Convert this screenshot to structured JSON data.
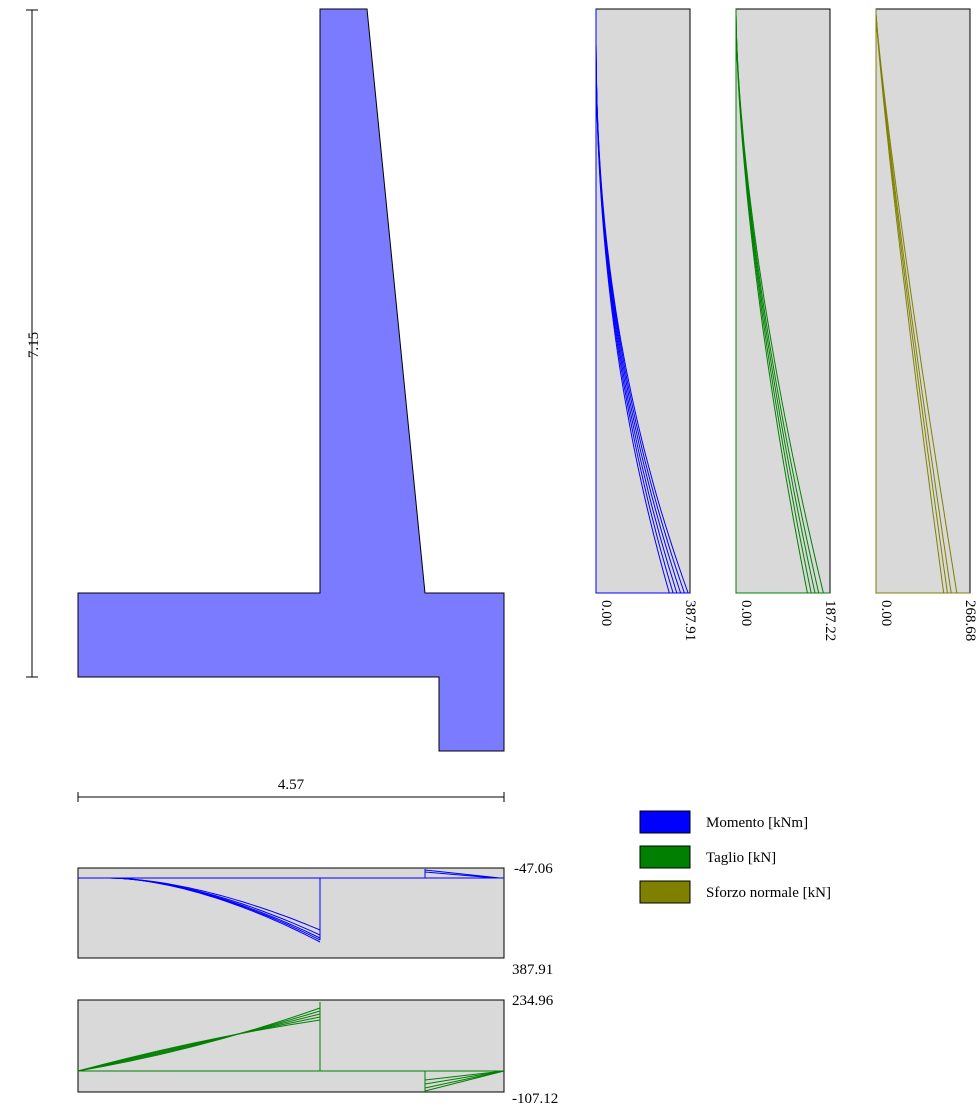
{
  "wall": {
    "height_label": "7.15",
    "width_label": "4.57",
    "fill_color": "#7b7bff"
  },
  "colors": {
    "momento": "#0000ff",
    "taglio": "#008000",
    "sforzo": "#808000",
    "plot_bg": "#d9d9d9"
  },
  "stem_plots": [
    {
      "min_label": "0.00",
      "max_label": "387.91"
    },
    {
      "min_label": "0.00",
      "max_label": "187.22"
    },
    {
      "min_label": "0.00",
      "max_label": "268.68"
    }
  ],
  "base_plots": [
    {
      "top_label": "-47.06",
      "bottom_label": "387.91"
    },
    {
      "top_label": "234.96",
      "bottom_label": "-107.12"
    }
  ],
  "legend": [
    {
      "label": "Momento [kNm]",
      "color": "#0000ff"
    },
    {
      "label": "Taglio [kN]",
      "color": "#008000"
    },
    {
      "label": "Sforzo normale [kN]",
      "color": "#808000"
    }
  ]
}
